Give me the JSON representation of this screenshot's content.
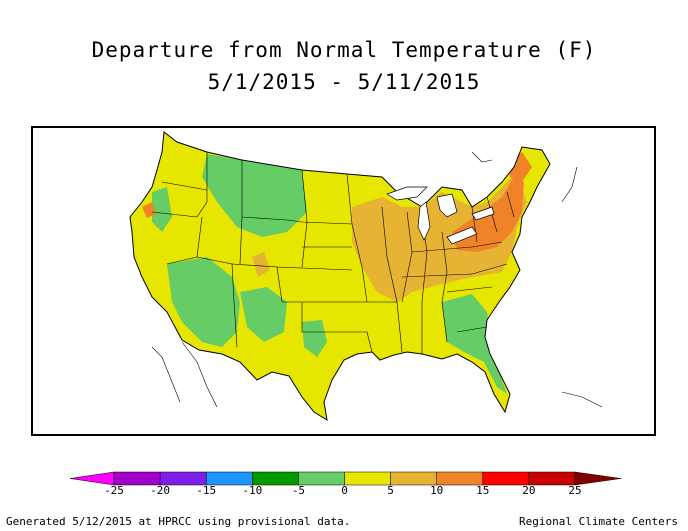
{
  "title": {
    "line1": "Departure from Normal Temperature (F)",
    "line2": "5/1/2015 - 5/11/2015"
  },
  "footer": {
    "left": "Generated 5/12/2015 at HPRCC using provisional data.",
    "right": "Regional Climate Centers"
  },
  "legend": {
    "ticks": [
      "-25",
      "-20",
      "-15",
      "-10",
      "-5",
      "0",
      "5",
      "10",
      "15",
      "20",
      "25"
    ],
    "bins": [
      {
        "range": "< -25",
        "color": "#ff00ff"
      },
      {
        "range": "-25 to -20",
        "color": "#a000c8"
      },
      {
        "range": "-20 to -15",
        "color": "#7d1fe6"
      },
      {
        "range": "-15 to -10",
        "color": "#1e96ff"
      },
      {
        "range": "-10 to -5",
        "color": "#009900"
      },
      {
        "range": "-5 to 0",
        "color": "#66cc66"
      },
      {
        "range": "0 to 5",
        "color": "#e6e600"
      },
      {
        "range": "5 to 10",
        "color": "#e6b432"
      },
      {
        "range": "10 to 15",
        "color": "#f08228"
      },
      {
        "range": "15 to 20",
        "color": "#ff0000"
      },
      {
        "range": "20 to 25",
        "color": "#c80000"
      },
      {
        "range": "> 25",
        "color": "#800000"
      }
    ]
  },
  "colors": {
    "near_normal_warm": "#e6e600",
    "slightly_cool": "#66cc66",
    "warm": "#e6b432",
    "warmer": "#f08228"
  }
}
